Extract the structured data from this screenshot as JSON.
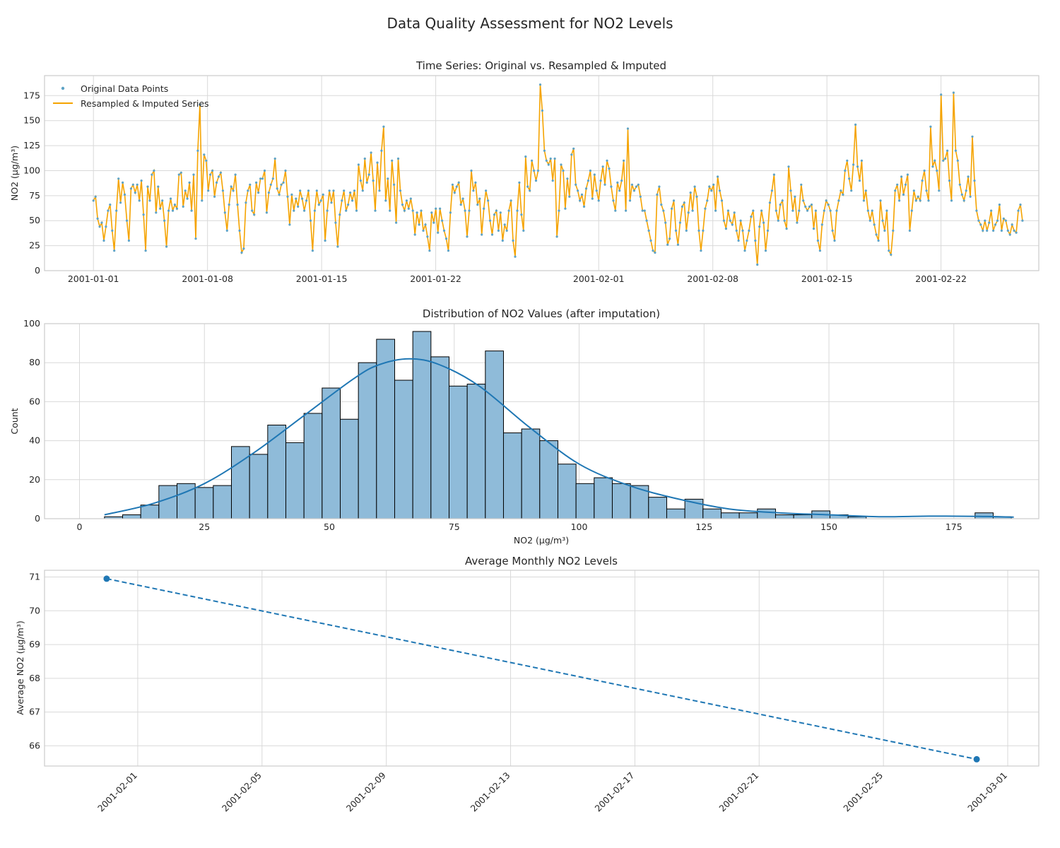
{
  "figure": {
    "title": "Data Quality Assessment for NO2 Levels"
  },
  "chart_data": [
    {
      "type": "line",
      "title": "Time Series: Original vs. Resampled & Imputed",
      "xlabel": "",
      "ylabel": "NO2 (µg/m³)",
      "xlim": [
        "2000-12-29",
        "2001-02-28"
      ],
      "ylim": [
        0,
        195
      ],
      "x_tick_labels": [
        "2001-01-01",
        "2001-01-08",
        "2001-01-15",
        "2001-01-22",
        "2001-02-01",
        "2001-02-08",
        "2001-02-15",
        "2001-02-22"
      ],
      "y_tick_labels": [
        "0",
        "25",
        "50",
        "75",
        "100",
        "125",
        "150",
        "175"
      ],
      "grid": true,
      "legend_position": "top-left",
      "series": [
        {
          "name": "Original Data Points",
          "style": "markers",
          "color": "#5fa3c5",
          "x_start": "2001-01-01",
          "x_end": "2001-02-27",
          "note": "hourly samples, same values as resampled series",
          "values": [
            70,
            74,
            52,
            44,
            48,
            30,
            44,
            60,
            66,
            40,
            20,
            60,
            92,
            68,
            88,
            76,
            50,
            30,
            82,
            86,
            78,
            86,
            70,
            90,
            56,
            20,
            84,
            70,
            96,
            100,
            58,
            84,
            62,
            70,
            50,
            24,
            60,
            72,
            60,
            66,
            62,
            96,
            98,
            64,
            80,
            72,
            88,
            60,
            96,
            32,
            120,
            166,
            70,
            116,
            110,
            80,
            96,
            100,
            74,
            88,
            94,
            98,
            80,
            58,
            40,
            66,
            84,
            80,
            96,
            66,
            40,
            18,
            22,
            68,
            80,
            86,
            60,
            56,
            88,
            78,
            92,
            92,
            100,
            58,
            78,
            86,
            92,
            112,
            82,
            76,
            86,
            88,
            100,
            74,
            46,
            76,
            60,
            72,
            64,
            80,
            72,
            60,
            70,
            80,
            50,
            20,
            60,
            80,
            66,
            70,
            76,
            30,
            60,
            80,
            68,
            80,
            48,
            24,
            56,
            70,
            80,
            60,
            66,
            78,
            70,
            80,
            60,
            106,
            90,
            80,
            112,
            88,
            96,
            118,
            90,
            60,
            108,
            80,
            120,
            144,
            70,
            92,
            60,
            110,
            86,
            48,
            112,
            80,
            66,
            60,
            70,
            62,
            72,
            60,
            36,
            58,
            46,
            60,
            40,
            46,
            34,
            20,
            58,
            48,
            62,
            38,
            62,
            50,
            40,
            32,
            20,
            58,
            86,
            78,
            84,
            88,
            66,
            72,
            60,
            34,
            60,
            100,
            80,
            88,
            66,
            72,
            36,
            62,
            80,
            70,
            50,
            36,
            56,
            60,
            40,
            58,
            30,
            46,
            40,
            60,
            70,
            30,
            14,
            60,
            88,
            56,
            40,
            114,
            84,
            80,
            110,
            100,
            90,
            100,
            186,
            160,
            120,
            110,
            106,
            112,
            90,
            112,
            34,
            60,
            106,
            100,
            62,
            92,
            74,
            116,
            122,
            86,
            80,
            70,
            76,
            64,
            82,
            90,
            100,
            72,
            96,
            80,
            70,
            90,
            104,
            86,
            110,
            102,
            84,
            70,
            60,
            88,
            80,
            90,
            110,
            60,
            142,
            70,
            86,
            80,
            84,
            86,
            74,
            60,
            60,
            50,
            40,
            30,
            20,
            18,
            76,
            84,
            66,
            60,
            48,
            26,
            32,
            62,
            70,
            40,
            26,
            48,
            64,
            68,
            40,
            58,
            78,
            60,
            84,
            74,
            40,
            20,
            40,
            62,
            70,
            84,
            80,
            86,
            60,
            94,
            80,
            70,
            50,
            42,
            60,
            50,
            46,
            58,
            40,
            30,
            50,
            40,
            20,
            30,
            40,
            54,
            60,
            30,
            6,
            44,
            60,
            48,
            20,
            40,
            68,
            80,
            96,
            60,
            50,
            66,
            70,
            50,
            42,
            104,
            80,
            60,
            74,
            48,
            60,
            86,
            70,
            64,
            60,
            64,
            66,
            42,
            60,
            30,
            20,
            46,
            60,
            70,
            66,
            60,
            40,
            30,
            60,
            70,
            80,
            76,
            100,
            110,
            92,
            80,
            106,
            146,
            104,
            90,
            110,
            70,
            80,
            60,
            50,
            60,
            46,
            36,
            30,
            70,
            50,
            40,
            60,
            20,
            16,
            40,
            80,
            86,
            70,
            94,
            76,
            86,
            96,
            40,
            60,
            80,
            70,
            74,
            70,
            90,
            100,
            80,
            70,
            144,
            104,
            110,
            100,
            80,
            176,
            110,
            112,
            120,
            90,
            70,
            178,
            120,
            110,
            86,
            76,
            70,
            80,
            94,
            74,
            134,
            90,
            60,
            50,
            46,
            40,
            50,
            40,
            48,
            60,
            40,
            46,
            50,
            66,
            40,
            52,
            50,
            40,
            36,
            46,
            40,
            38,
            60,
            66,
            50
          ]
        },
        {
          "name": "Resampled & Imputed Series",
          "style": "line",
          "color": "#f5a300",
          "x_start": "2001-01-01",
          "x_end": "2001-02-27"
        }
      ]
    },
    {
      "type": "bar",
      "title": "Distribution of NO2 Values (after imputation)",
      "xlabel": "NO2 (µg/m³)",
      "ylabel": "Count",
      "xlim": [
        -7,
        192
      ],
      "ylim": [
        0,
        100
      ],
      "x_tick_labels": [
        "0",
        "25",
        "50",
        "75",
        "100",
        "125",
        "150",
        "175"
      ],
      "y_tick_labels": [
        "0",
        "20",
        "40",
        "60",
        "80",
        "100"
      ],
      "grid": true,
      "bin_start": 5,
      "bin_width": 3.63,
      "counts": [
        1,
        2,
        7,
        17,
        18,
        16,
        17,
        37,
        33,
        48,
        39,
        54,
        67,
        51,
        80,
        92,
        71,
        96,
        83,
        68,
        69,
        86,
        44,
        46,
        40,
        28,
        18,
        21,
        18,
        17,
        11,
        5,
        10,
        5,
        3,
        3,
        5,
        2,
        2,
        4,
        2,
        1,
        0,
        0,
        0,
        0,
        0,
        0,
        3,
        1
      ],
      "kde": {
        "x": [
          5,
          15,
          25,
          35,
          45,
          55,
          60,
          66,
          72,
          80,
          90,
          100,
          110,
          120,
          130,
          140,
          150,
          160,
          170,
          180,
          187
        ],
        "y": [
          2,
          8,
          18,
          34,
          53,
          72,
          79,
          82,
          79,
          68,
          47,
          28,
          17,
          10,
          5,
          3,
          2,
          1,
          1.3,
          1.2,
          0.8
        ]
      },
      "bar_color": "#8fbbd9",
      "kde_color": "#1f77b4"
    },
    {
      "type": "line",
      "title": "Average Monthly NO2 Levels",
      "xlabel": "",
      "ylabel": "Average NO2 (µg/m³)",
      "xlim": [
        "2001-01-29",
        "2001-03-02"
      ],
      "ylim": [
        65.4,
        71.2
      ],
      "x_tick_labels": [
        "2001-02-01",
        "2001-02-05",
        "2001-02-09",
        "2001-02-13",
        "2001-02-17",
        "2001-02-21",
        "2001-02-25",
        "2001-03-01"
      ],
      "y_tick_labels": [
        "66",
        "67",
        "68",
        "69",
        "70",
        "71"
      ],
      "grid": true,
      "x": [
        "2001-01-31",
        "2001-02-28"
      ],
      "values": [
        70.95,
        65.6
      ],
      "line_style": "dashed",
      "color": "#1f77b4"
    }
  ]
}
